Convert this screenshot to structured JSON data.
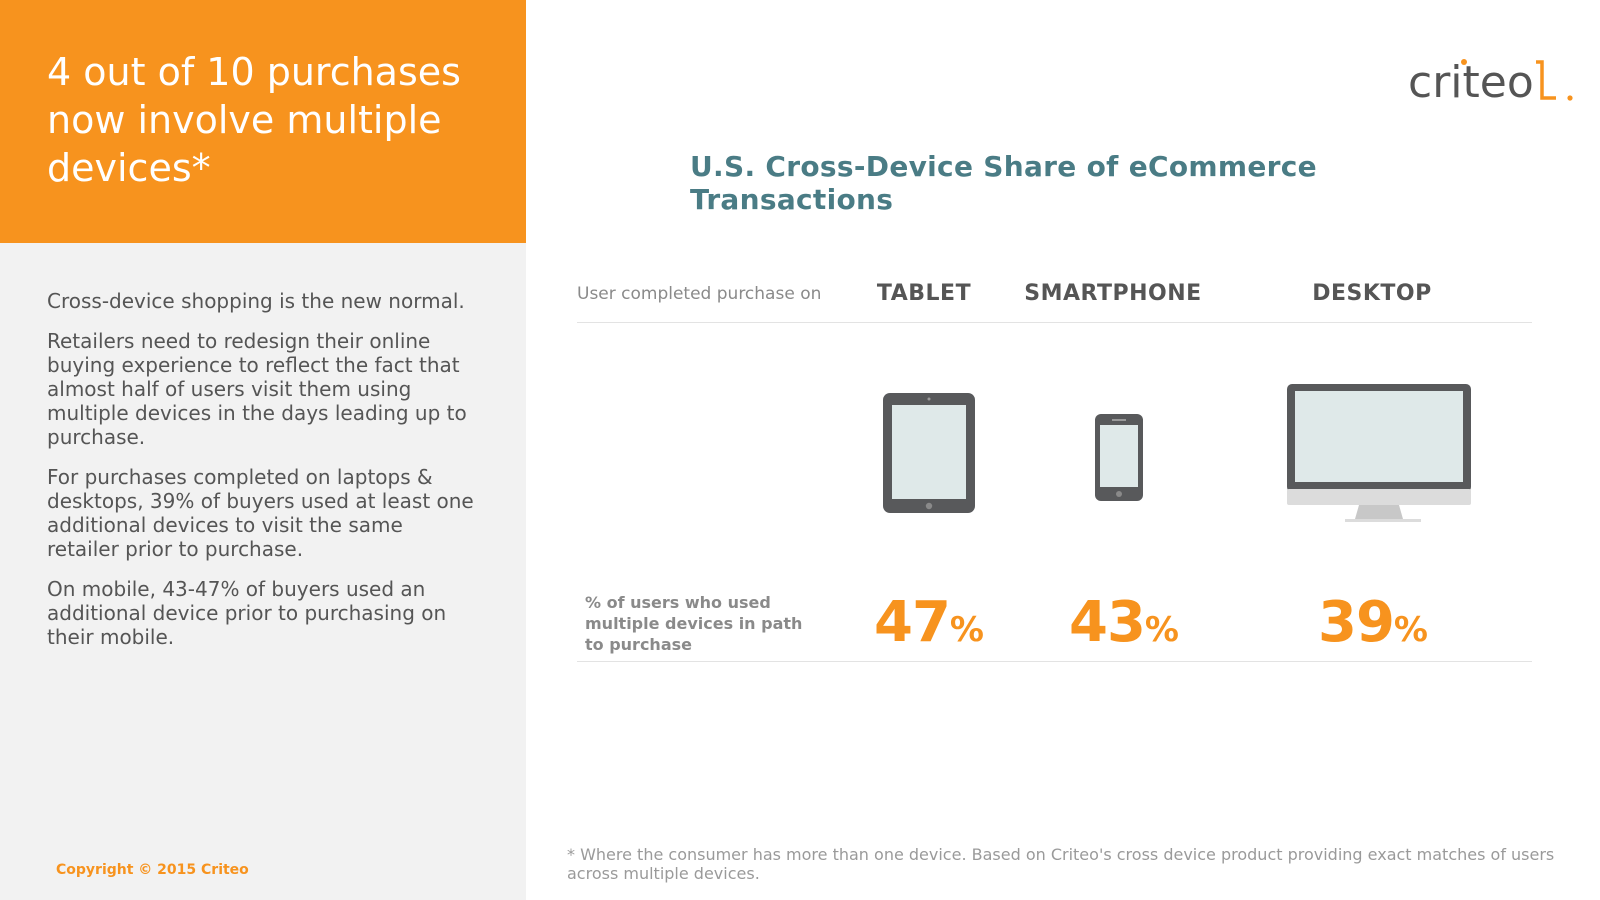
{
  "headline": "4 out of 10 purchases now involve multiple devices*",
  "body": [
    "Cross-device shopping is the new normal.",
    "Retailers need to redesign their online buying experience to reflect the fact that almost half of users visit them using multiple devices in the days leading up to purchase.",
    "For purchases completed on laptops & desktops, 39% of buyers used at least one additional devices to visit the same retailer prior to purchase.",
    "On mobile, 43-47% of buyers used an additional device prior to purchasing on their mobile."
  ],
  "copyright": "Copyright © 2015 Criteo",
  "logo_text": "criteo",
  "footnote": "* Where the consumer has more than one device. Based on Criteo's cross device product providing exact matches of users across multiple devices.",
  "colors": {
    "orange": "#f7931e",
    "teal": "#4a7c85",
    "gray": "#555555",
    "panel": "#f2f2f2"
  },
  "chart_data": {
    "type": "table",
    "title": "U.S. Cross-Device Share of eCommerce Transactions",
    "header_label": "User completed purchase on",
    "row_label": "% of users who used multiple devices in path to purchase",
    "categories": [
      "TABLET",
      "SMARTPHONE",
      "DESKTOP"
    ],
    "icons": [
      "tablet-icon",
      "smartphone-icon",
      "desktop-icon"
    ],
    "values": [
      47,
      43,
      39
    ],
    "value_labels": [
      "47",
      "43",
      "39"
    ],
    "unit": "%"
  }
}
